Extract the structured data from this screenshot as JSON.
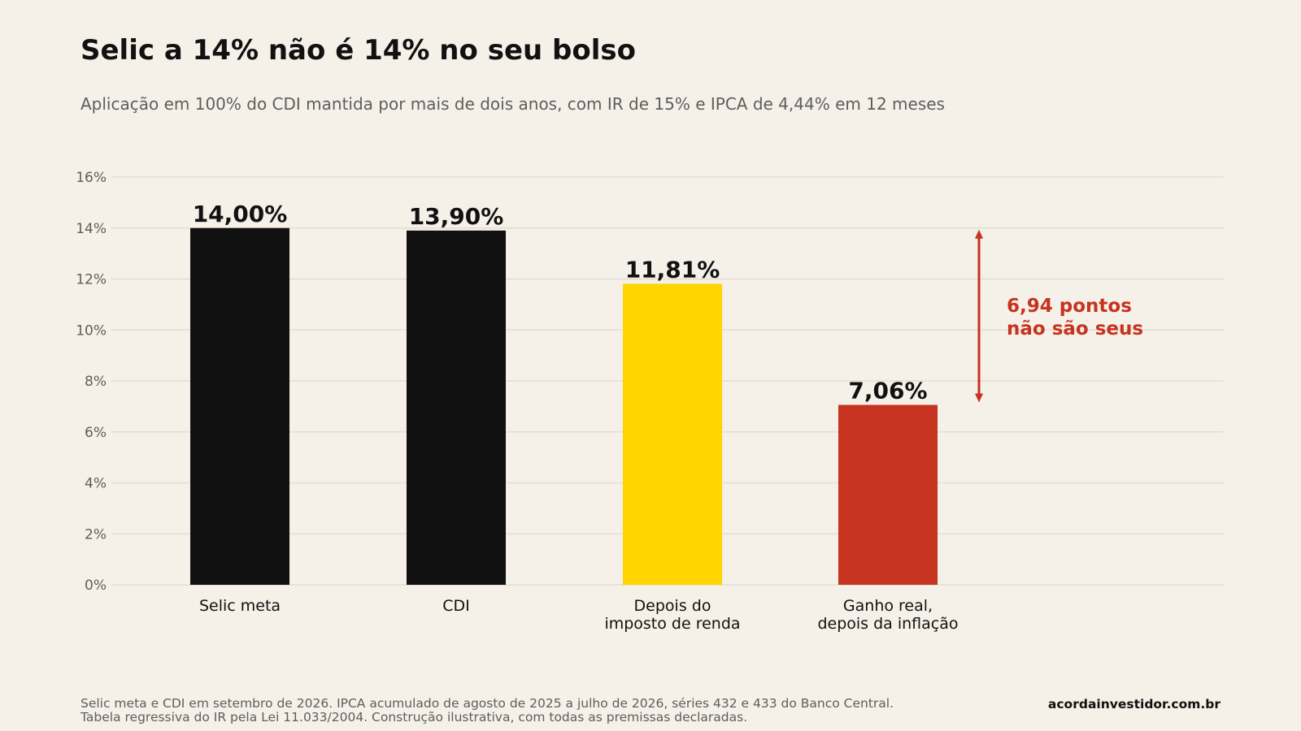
{
  "header": {
    "title": "Selic a 14% não é 14% no seu bolso",
    "subtitle": "Aplicação em 100% do CDI mantida por mais de dois anos, com IR de 15% e IPCA de 4,44% em 12 meses"
  },
  "chart_data": {
    "type": "bar",
    "categories": [
      [
        "Selic meta"
      ],
      [
        "CDI"
      ],
      [
        "Depois do",
        "imposto de renda"
      ],
      [
        "Ganho real,",
        "depois da inflação"
      ]
    ],
    "values": [
      14.0,
      13.9,
      11.81,
      7.06
    ],
    "value_labels": [
      "14,00%",
      "13,90%",
      "11,81%",
      "7,06%"
    ],
    "bar_colors": [
      "#111111",
      "#111111",
      "#ffd400",
      "#c63320"
    ],
    "ylim": [
      0,
      16
    ],
    "yticks": [
      0,
      2,
      4,
      6,
      8,
      10,
      12,
      14,
      16
    ],
    "ytick_labels": [
      "0%",
      "2%",
      "4%",
      "6%",
      "8%",
      "10%",
      "12%",
      "14%",
      "16%"
    ],
    "grid": true,
    "annotation": {
      "from_value": 14.0,
      "to_value": 7.06,
      "lines": [
        "6,94 pontos",
        "não são seus"
      ],
      "color": "#c63320"
    }
  },
  "footer": {
    "note_line1": "Selic meta e CDI em setembro de 2026. IPCA acumulado de agosto de 2025 a julho de 2026, séries 432 e 433 do Banco Central.",
    "note_line2": "Tabela regressiva do IR pela Lei 11.033/2004. Construção ilustrativa, com todas as premissas declaradas.",
    "brand": "acordainvestidor.com.br"
  }
}
